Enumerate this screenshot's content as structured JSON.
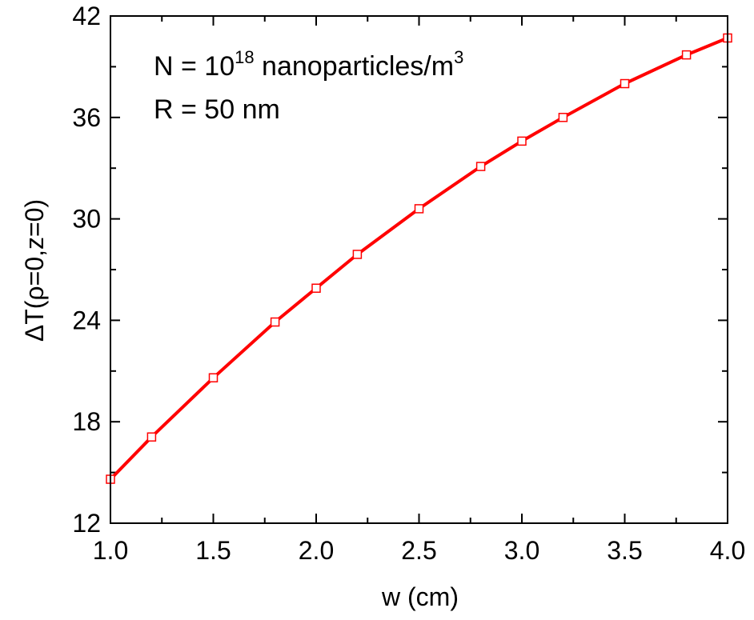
{
  "chart_data": {
    "type": "line",
    "xlabel": "w (cm)",
    "ylabel": "ΔT(ρ=0,z=0)",
    "xlim": [
      1.0,
      4.0
    ],
    "ylim": [
      12,
      42
    ],
    "xticks": [
      1.0,
      1.5,
      2.0,
      2.5,
      3.0,
      3.5,
      4.0
    ],
    "xtick_labels": [
      "1.0",
      "1.5",
      "2.0",
      "2.5",
      "3.0",
      "3.5",
      "4.0"
    ],
    "yticks": [
      12,
      18,
      24,
      30,
      36,
      42
    ],
    "ytick_labels": [
      "12",
      "18",
      "24",
      "30",
      "36",
      "42"
    ],
    "x_minor_step": 0.25,
    "y_minor_step": 3,
    "grid": false,
    "annotations": {
      "line1": {
        "prefix": "N = 10",
        "exponent": "18",
        "middle": " nanoparticles/m",
        "unit_exponent": "3"
      },
      "line2": "R = 50 nm"
    },
    "series": [
      {
        "color": "#ff0000",
        "marker": "open-square",
        "x": [
          1.0,
          1.2,
          1.5,
          1.8,
          2.0,
          2.2,
          2.5,
          2.8,
          3.0,
          3.2,
          3.5,
          3.8,
          4.0
        ],
        "y": [
          14.6,
          17.1,
          20.6,
          23.9,
          25.9,
          27.9,
          30.6,
          33.1,
          34.6,
          36.0,
          38.0,
          39.7,
          40.7
        ]
      }
    ]
  }
}
